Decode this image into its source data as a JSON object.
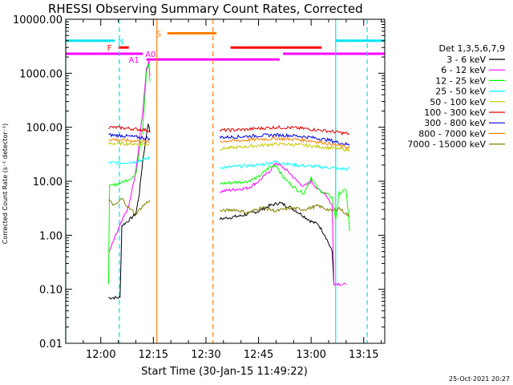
{
  "chart_data": {
    "type": "line",
    "title": "RHESSI Observing Summary Count Rates, Corrected",
    "xlabel": "Start Time (30-Jan-15 11:49:22)",
    "ylabel": "Corrected Count Rate (s⁻¹ detector⁻¹)",
    "yscale": "log",
    "ylim": [
      0.01,
      10000
    ],
    "xlim_minutes": [
      -10,
      81
    ],
    "x_units": "minutes after 12:00 (30-Jan-15)",
    "x_ticks": [
      {
        "value": 0,
        "label": "12:00"
      },
      {
        "value": 15,
        "label": "12:15"
      },
      {
        "value": 30,
        "label": "12:30"
      },
      {
        "value": 45,
        "label": "12:45"
      },
      {
        "value": 60,
        "label": "13:00"
      },
      {
        "value": 75,
        "label": "13:15"
      }
    ],
    "y_ticks": [
      {
        "value": 0.01,
        "label": "0.01"
      },
      {
        "value": 0.1,
        "label": "0.10"
      },
      {
        "value": 1,
        "label": "1.00"
      },
      {
        "value": 10,
        "label": "10.00"
      },
      {
        "value": 100,
        "label": "100.00"
      },
      {
        "value": 1000,
        "label": "1000.00"
      },
      {
        "value": 10000,
        "label": "10000.00"
      }
    ],
    "legend_title": "Det 1,3,5,6,7,9",
    "legend_position": "right",
    "series": [
      {
        "name": "3 - 6 keV",
        "color": "#000000",
        "segments": [
          [
            [
              2.2,
              0.07
            ],
            [
              5.5,
              0.07
            ],
            [
              6,
              1.5
            ],
            [
              8,
              1.9
            ],
            [
              10,
              2.5
            ],
            [
              11,
              6
            ],
            [
              12,
              25
            ],
            [
              13,
              70
            ],
            [
              13.5,
              120
            ],
            [
              14,
              80
            ]
          ],
          [
            [
              34,
              2.0
            ],
            [
              40,
              2.3
            ],
            [
              45,
              2.8
            ],
            [
              48,
              3.5
            ],
            [
              51,
              4
            ],
            [
              54,
              3.3
            ],
            [
              57,
              2.5
            ],
            [
              60,
              1.8
            ],
            [
              62,
              1.6
            ],
            [
              64,
              1.0
            ],
            [
              66,
              0.5
            ],
            [
              66.5,
              0.12
            ]
          ]
        ]
      },
      {
        "name": "6 - 12 keV",
        "color": "#ff00ff",
        "segments": [
          [
            [
              2.2,
              0.45
            ],
            [
              4,
              0.9
            ],
            [
              6,
              1.8
            ],
            [
              8,
              3.5
            ],
            [
              10,
              15
            ],
            [
              12,
              200
            ],
            [
              13,
              1200
            ],
            [
              13.7,
              1700
            ],
            [
              14,
              900
            ]
          ],
          [
            [
              34,
              6.5
            ],
            [
              38,
              7
            ],
            [
              42,
              7.5
            ],
            [
              45,
              10
            ],
            [
              48,
              15
            ],
            [
              50,
              22
            ],
            [
              52,
              18
            ],
            [
              54,
              14
            ],
            [
              56,
              10
            ],
            [
              58,
              8
            ],
            [
              60,
              10
            ],
            [
              62,
              7
            ],
            [
              64,
              6
            ],
            [
              66,
              3.5
            ],
            [
              66.5,
              0.13
            ],
            [
              70,
              0.12
            ]
          ]
        ]
      },
      {
        "name": "12 - 25 keV",
        "color": "#00ff00",
        "segments": [
          [
            [
              2.2,
              0.13
            ],
            [
              2.5,
              8
            ],
            [
              6,
              9.5
            ],
            [
              8,
              11
            ],
            [
              10,
              13
            ],
            [
              12,
              100
            ],
            [
              13,
              1000
            ],
            [
              13.7,
              1500
            ],
            [
              14,
              700
            ]
          ],
          [
            [
              34,
              9
            ],
            [
              38,
              9.5
            ],
            [
              42,
              10
            ],
            [
              45,
              12
            ],
            [
              48,
              18
            ],
            [
              50,
              20
            ],
            [
              52,
              12
            ],
            [
              54,
              9
            ],
            [
              56,
              7
            ],
            [
              58,
              6
            ],
            [
              60,
              12
            ],
            [
              62,
              7
            ],
            [
              64,
              6
            ],
            [
              66,
              5
            ],
            [
              67,
              2
            ],
            [
              68,
              6
            ],
            [
              70,
              7
            ],
            [
              71,
              1.2
            ]
          ]
        ]
      },
      {
        "name": "25 - 50 keV",
        "color": "#00ffff",
        "segments": [
          [
            [
              2.2,
              22
            ],
            [
              6,
              22
            ],
            [
              10,
              23
            ],
            [
              14,
              27
            ]
          ],
          [
            [
              34,
              18
            ],
            [
              40,
              19
            ],
            [
              45,
              20
            ],
            [
              50,
              23
            ],
            [
              55,
              20
            ],
            [
              60,
              19
            ],
            [
              65,
              18
            ],
            [
              68,
              17
            ],
            [
              71,
              17
            ]
          ]
        ]
      },
      {
        "name": "50 - 100 keV",
        "color": "#c8c800",
        "segments": [
          [
            [
              2.2,
              50
            ],
            [
              6,
              50
            ],
            [
              10,
              49
            ],
            [
              14,
              48
            ]
          ],
          [
            [
              34,
              40
            ],
            [
              40,
              43
            ],
            [
              45,
              46
            ],
            [
              50,
              49
            ],
            [
              55,
              48
            ],
            [
              60,
              45
            ],
            [
              65,
              42
            ],
            [
              68,
              40
            ],
            [
              71,
              38
            ]
          ]
        ]
      },
      {
        "name": "100 - 300 keV",
        "color": "#e00000",
        "segments": [
          [
            [
              2.2,
              100
            ],
            [
              6,
              98
            ],
            [
              10,
              92
            ],
            [
              14,
              88
            ]
          ],
          [
            [
              34,
              88
            ],
            [
              40,
              90
            ],
            [
              45,
              95
            ],
            [
              50,
              100
            ],
            [
              55,
              98
            ],
            [
              60,
              92
            ],
            [
              65,
              85
            ],
            [
              68,
              80
            ],
            [
              71,
              75
            ]
          ]
        ]
      },
      {
        "name": "300 - 800 keV",
        "color": "#0000e0",
        "segments": [
          [
            [
              2.2,
              72
            ],
            [
              6,
              70
            ],
            [
              10,
              66
            ],
            [
              14,
              62
            ]
          ],
          [
            [
              34,
              65
            ],
            [
              40,
              67
            ],
            [
              45,
              70
            ],
            [
              50,
              72
            ],
            [
              55,
              70
            ],
            [
              60,
              65
            ],
            [
              65,
              58
            ],
            [
              68,
              52
            ],
            [
              71,
              47
            ]
          ]
        ]
      },
      {
        "name": "800 - 7000 keV",
        "color": "#ff8000",
        "segments": [
          [
            [
              2.2,
              60
            ],
            [
              6,
              58
            ],
            [
              10,
              56
            ],
            [
              14,
              53
            ]
          ],
          [
            [
              34,
              55
            ],
            [
              40,
              57
            ],
            [
              45,
              60
            ],
            [
              50,
              62
            ],
            [
              55,
              60
            ],
            [
              60,
              56
            ],
            [
              65,
              50
            ],
            [
              68,
              46
            ],
            [
              71,
              42
            ]
          ]
        ]
      },
      {
        "name": "7000 - 15000 keV",
        "color": "#808000",
        "segments": [
          [
            [
              2.2,
              4.5
            ],
            [
              4,
              3.5
            ],
            [
              6,
              4.8
            ],
            [
              8,
              3.2
            ],
            [
              10,
              2.5
            ],
            [
              12,
              3.5
            ],
            [
              14,
              4.5
            ]
          ],
          [
            [
              34,
              2.8
            ],
            [
              38,
              3
            ],
            [
              42,
              2.6
            ],
            [
              46,
              3.3
            ],
            [
              50,
              2.8
            ],
            [
              54,
              3.2
            ],
            [
              58,
              3
            ],
            [
              62,
              3.5
            ],
            [
              66,
              2.8
            ],
            [
              68,
              3.2
            ],
            [
              70,
              2.5
            ],
            [
              71,
              2.2
            ]
          ]
        ]
      }
    ],
    "flag_bars": [
      {
        "label": "N",
        "color": "#00e5ee",
        "level": 4000,
        "segments": [
          [
            -10,
            4
          ],
          [
            67,
            81
          ]
        ]
      },
      {
        "label": "S",
        "color": "#ff8000",
        "level": 5500,
        "segments": [
          [
            19,
            33
          ]
        ]
      },
      {
        "label": "F",
        "color": "#ff0000",
        "level": 3000,
        "segments": [
          [
            5,
            8
          ],
          [
            37,
            63
          ]
        ]
      },
      {
        "label": "A0",
        "color": "#ff00ff",
        "level": 2300,
        "segments": [
          [
            -10,
            12
          ],
          [
            52,
            81
          ]
        ]
      },
      {
        "label": "A1",
        "color": "#ff00ff",
        "level": 1800,
        "segments": [
          [
            13,
            51
          ]
        ]
      }
    ],
    "vlines": [
      {
        "x": -10,
        "color": "#00e5ee",
        "style": "solid"
      },
      {
        "x": 5.3,
        "color": "#00e5ee",
        "style": "dashed"
      },
      {
        "x": 16,
        "color": "#ff8000",
        "style": "solid"
      },
      {
        "x": 32,
        "color": "#ff8000",
        "style": "dashed"
      },
      {
        "x": 67,
        "color": "#00e5ee",
        "style": "solid"
      },
      {
        "x": 76,
        "color": "#00e5ee",
        "style": "dashed"
      }
    ],
    "grid": false
  },
  "timestamp": "25-Oct-2021 20:27"
}
